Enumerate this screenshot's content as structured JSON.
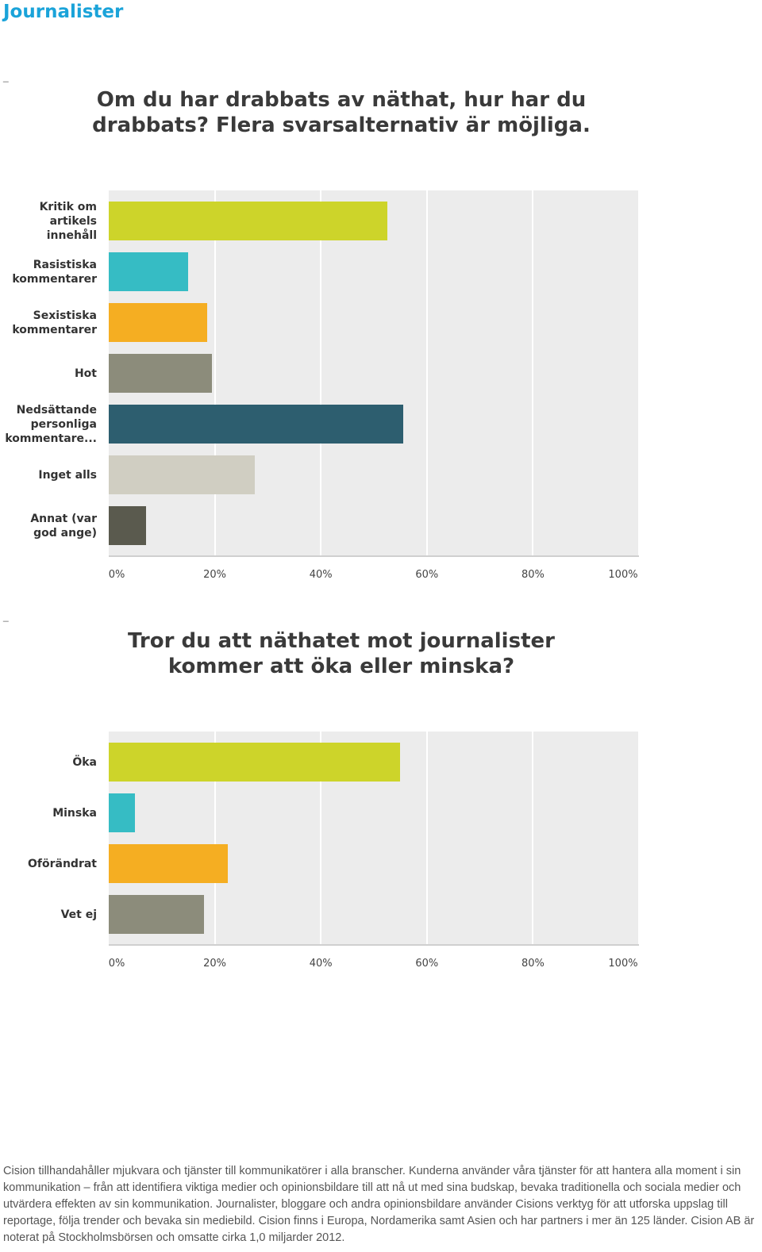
{
  "heading": "Journalister",
  "separator": "_",
  "colors": {
    "heading": "#1aa3d9",
    "bar_palette": [
      "#cdd42a",
      "#36bcc4",
      "#f5ae22",
      "#8c8c7b",
      "#2d5e6f",
      "#d0cec2",
      "#5a5a4e"
    ]
  },
  "chart_data": [
    {
      "type": "bar",
      "orientation": "horizontal",
      "title": "Om du har drabbats av näthat, hur har du drabbats? Flera svarsalternativ är möjliga.",
      "title_lines": [
        "Om du har drabbats av näthat, hur har du",
        "drabbats? Flera svarsalternativ är möjliga."
      ],
      "categories": [
        "Kritik om artikels innehåll",
        "Rasistiska kommentarer",
        "Sexistiska kommentarer",
        "Hot",
        "Nedsättande personliga kommentare...",
        "Inget alls",
        "Annat (var god ange)"
      ],
      "category_lines": [
        [
          "Kritik om",
          "artikels",
          "innehåll"
        ],
        [
          "Rasistiska",
          "kommentarer"
        ],
        [
          "Sexistiska",
          "kommentarer"
        ],
        [
          "Hot"
        ],
        [
          "Nedsättande",
          "personliga",
          "kommentare..."
        ],
        [
          "Inget alls"
        ],
        [
          "Annat (var",
          "god ange)"
        ]
      ],
      "values": [
        52.5,
        15,
        18.5,
        19.5,
        55.5,
        27.5,
        7
      ],
      "xlim": [
        0,
        100
      ],
      "xticks": [
        "0%",
        "20%",
        "40%",
        "60%",
        "80%",
        "100%"
      ],
      "xtick_values": [
        0,
        20,
        40,
        60,
        80,
        100
      ],
      "grid": true
    },
    {
      "type": "bar",
      "orientation": "horizontal",
      "title": "Tror du att näthatet mot journalister kommer att öka eller minska?",
      "title_lines": [
        "Tror du att näthatet mot journalister",
        "kommer att öka eller minska?"
      ],
      "categories": [
        "Öka",
        "Minska",
        "Oförändrat",
        "Vet ej"
      ],
      "category_lines": [
        [
          "Öka"
        ],
        [
          "Minska"
        ],
        [
          "Oförändrat"
        ],
        [
          "Vet ej"
        ]
      ],
      "values": [
        55,
        5,
        22.5,
        18
      ],
      "xlim": [
        0,
        100
      ],
      "xticks": [
        "0%",
        "20%",
        "40%",
        "60%",
        "80%",
        "100%"
      ],
      "xtick_values": [
        0,
        20,
        40,
        60,
        80,
        100
      ],
      "grid": true
    }
  ],
  "footer": "Cision tillhandahåller mjukvara och tjänster till kommunikatörer i alla branscher. Kunderna använder våra tjänster för att hantera alla moment i sin kommunikation – från att identifiera viktiga medier och opinionsbildare till att nå ut med sina budskap, bevaka traditionella och sociala medier och utvärdera effekten av sin kommunikation. Journalister, bloggare och andra opinionsbildare använder Cisions verktyg för att utforska uppslag till reportage, följa trender och bevaka sin mediebild. Cision finns i Europa, Nordamerika samt Asien och har partners i mer än 125 länder. Cision AB är noterat på Stockholmsbörsen och omsatte cirka 1,0 miljarder 2012."
}
